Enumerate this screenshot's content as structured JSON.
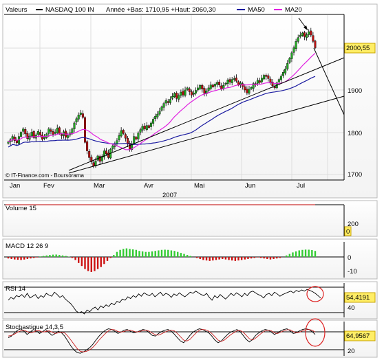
{
  "colors": {
    "up_candle": "#22aa22",
    "down_candle": "#bb1111",
    "ma50": "#1a1aa0",
    "ma20": "#e020e0",
    "trendline": "#000000",
    "macd_pos": "#33cc33",
    "macd_neg": "#cc1111",
    "volume_line": "#cc3333",
    "highlight_circle": "#dd2222",
    "price_tag_bg": "#ffee66"
  },
  "header": {
    "valeurs": "Valeurs",
    "instrument": "NASDAQ 100 IN",
    "range": "Année +Bas: 1710,95 +Haut: 2060,30",
    "ma50": "MA50",
    "ma20": "MA20"
  },
  "source": "© IT-Finance.com - Boursorama",
  "year_label": "2007",
  "current_price": "2000,55",
  "rsi_current": "54,4191",
  "stoch_current": "64,9567",
  "volume_current": "0",
  "chart_data": [
    {
      "type": "candlestick",
      "xlabel_months": [
        "Jan",
        "Fev",
        "Mar",
        "Avr",
        "Mai",
        "Jun",
        "Jul"
      ],
      "yticks": [
        1700,
        1800,
        1900
      ],
      "ylim": [
        1690,
        2100
      ],
      "ma_labels": [
        "MA50",
        "MA20"
      ],
      "close_series": [
        1777,
        1782,
        1790,
        1780,
        1775,
        1790,
        1800,
        1808,
        1796,
        1785,
        1791,
        1800,
        1787,
        1794,
        1802,
        1794,
        1783,
        1788,
        1796,
        1808,
        1802,
        1795,
        1800,
        1810,
        1797,
        1792,
        1801,
        1788,
        1792,
        1799,
        1808,
        1822,
        1832,
        1841,
        1846,
        1835,
        1776,
        1756,
        1740,
        1730,
        1720,
        1732,
        1744,
        1731,
        1743,
        1756,
        1749,
        1740,
        1760,
        1768,
        1773,
        1780,
        1792,
        1804,
        1797,
        1786,
        1772,
        1760,
        1773,
        1790,
        1784,
        1798,
        1806,
        1814,
        1808,
        1816,
        1811,
        1822,
        1831,
        1838,
        1843,
        1850,
        1860,
        1868,
        1875,
        1870,
        1878,
        1885,
        1892,
        1880,
        1887,
        1895,
        1888,
        1900,
        1905,
        1896,
        1888,
        1893,
        1899,
        1905,
        1911,
        1902,
        1892,
        1898,
        1905,
        1912,
        1907,
        1914,
        1918,
        1912,
        1903,
        1911,
        1916,
        1924,
        1919,
        1925,
        1927,
        1921,
        1912,
        1917,
        1908,
        1900,
        1893,
        1902,
        1906,
        1915,
        1914,
        1923,
        1918,
        1928,
        1935,
        1932,
        1927,
        1918,
        1910,
        1905,
        1917,
        1925,
        1933,
        1942,
        1950,
        1963,
        1975,
        1988,
        2000,
        2015,
        2024,
        2030,
        2035,
        2026,
        2031,
        2038,
        2030,
        2015,
        2000
      ]
    },
    {
      "type": "bar",
      "title": "Volume 15",
      "yticks": [
        200
      ],
      "values": [
        0
      ]
    },
    {
      "type": "bar",
      "title": "MACD 12 26 9",
      "yticks": [
        0,
        -10
      ],
      "ylim": [
        -16,
        10
      ],
      "values": [
        -1.5,
        -2,
        -2.5,
        -2.8,
        -3,
        -2.6,
        -2,
        -1.5,
        -1,
        -0.5,
        0.5,
        1,
        1.5,
        2,
        2.3,
        2.4,
        2,
        1.5,
        1,
        0.3,
        -1,
        -3,
        -6,
        -9,
        -12,
        -14,
        -15,
        -14,
        -12,
        -10,
        -7,
        -4,
        -1,
        2,
        5,
        7,
        8,
        8.5,
        8,
        7.5,
        7,
        6,
        5.5,
        5,
        5,
        5.5,
        6,
        6.5,
        7,
        7.2,
        7,
        6.5,
        6,
        5,
        4,
        3,
        2,
        1,
        0,
        -1,
        -2,
        -3,
        -3.5,
        -4,
        -3.5,
        -3,
        -2.5,
        -2,
        -2.5,
        -3,
        -3.5,
        -4,
        -3.5,
        -3,
        -2.5,
        -2,
        -1.5,
        -1,
        -0.5,
        -1,
        -1.5,
        -2,
        -2.5,
        -2,
        -1.5,
        -1,
        0,
        1.5,
        3,
        4.5,
        5.5,
        6.5,
        7,
        7.3,
        7.2,
        6.8,
        6
      ]
    },
    {
      "type": "line",
      "title": "RSI 14",
      "yticks": [
        40
      ],
      "ylim": [
        20,
        80
      ],
      "values": [
        50,
        55,
        52,
        58,
        56,
        60,
        55,
        62,
        54,
        57,
        60,
        53,
        58,
        55,
        62,
        59,
        57,
        64,
        60,
        55,
        58,
        52,
        48,
        44,
        38,
        31,
        28,
        30,
        26,
        33,
        30,
        35,
        38,
        33,
        40,
        37,
        42,
        39,
        45,
        42,
        48,
        46,
        52,
        50,
        56,
        53,
        58,
        55,
        61,
        57,
        63,
        60,
        58,
        62,
        56,
        60,
        64,
        58,
        62,
        60,
        55,
        61,
        58,
        63,
        59,
        56,
        60,
        64,
        62,
        66,
        63,
        60,
        58,
        62,
        55,
        50,
        58,
        54,
        60,
        56,
        52,
        57,
        62,
        58,
        63,
        60,
        56,
        62,
        58,
        64,
        66,
        63,
        60,
        58,
        54,
        60,
        62,
        58,
        64,
        61,
        57,
        60,
        62,
        64,
        66,
        63,
        67,
        65,
        68,
        66,
        69,
        67,
        65,
        62,
        58,
        54
      ]
    },
    {
      "type": "line",
      "title": "Stochastique 14,3,5",
      "yticks": [
        20
      ],
      "ylim": [
        0,
        100
      ],
      "series": [
        {
          "values": [
            55,
            60,
            70,
            78,
            82,
            75,
            65,
            72,
            80,
            76,
            68,
            74,
            80,
            70,
            62,
            68,
            75,
            70,
            60,
            45,
            30,
            18,
            10,
            8,
            12,
            18,
            25,
            35,
            48,
            60,
            70,
            78,
            82,
            80,
            75,
            68,
            72,
            78,
            80,
            75,
            70,
            72,
            76,
            80,
            78,
            70,
            62,
            60,
            68,
            74,
            78,
            80,
            75,
            66,
            55,
            45,
            40,
            50,
            62,
            72,
            78,
            82,
            80,
            75,
            70,
            60,
            48,
            40,
            45,
            55,
            65,
            72,
            76,
            80,
            74,
            62,
            50,
            42,
            50,
            62,
            70,
            76,
            80,
            78,
            72,
            65,
            70,
            76,
            80,
            82,
            76,
            68,
            70,
            76,
            80,
            82,
            80,
            74,
            65
          ]
        },
        {
          "values": [
            60,
            62,
            66,
            72,
            76,
            78,
            74,
            70,
            72,
            76,
            76,
            72,
            74,
            76,
            72,
            68,
            70,
            72,
            70,
            60,
            48,
            35,
            22,
            14,
            12,
            14,
            18,
            26,
            36,
            48,
            58,
            68,
            76,
            80,
            79,
            74,
            72,
            74,
            77,
            78,
            75,
            72,
            74,
            77,
            78,
            75,
            69,
            64,
            63,
            67,
            72,
            76,
            78,
            76,
            68,
            58,
            48,
            45,
            50,
            60,
            70,
            78,
            80,
            79,
            75,
            68,
            58,
            48,
            44,
            48,
            56,
            64,
            70,
            76,
            77,
            72,
            62,
            52,
            48,
            54,
            62,
            70,
            76,
            78,
            76,
            70,
            68,
            72,
            76,
            79,
            79,
            74,
            70,
            72,
            76,
            79,
            80,
            78,
            72
          ]
        }
      ]
    }
  ]
}
